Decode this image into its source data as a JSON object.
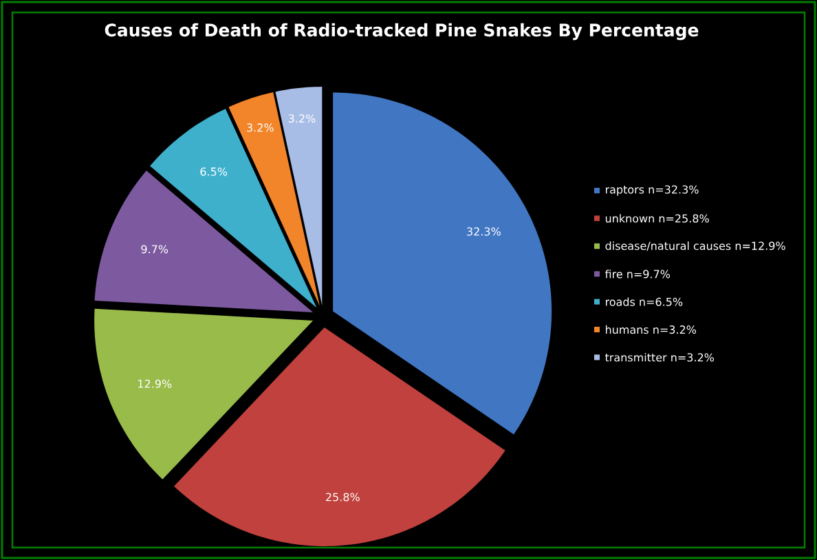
{
  "chart_data": {
    "type": "pie",
    "title": "Causes of Death of Radio-tracked  Pine Snakes By Percentage",
    "categories": [
      "raptors n=32.3%",
      "unknown n=25.8%",
      "disease/natural causes n=12.9%",
      "fire n=9.7%",
      "roads n=6.5%",
      "humans n=3.2%",
      "transmitter n=3.2%"
    ],
    "values": [
      32.3,
      25.8,
      12.9,
      9.7,
      6.5,
      3.2,
      3.2
    ],
    "value_labels": [
      "32.3%",
      "25.8%",
      "12.9%",
      "9.7%",
      "6.5%",
      "3.2%",
      "3.2%"
    ],
    "colors": [
      "#4076c2",
      "#c0413d",
      "#98bb4a",
      "#7d5aa0",
      "#3fb0cc",
      "#f2842a",
      "#a8bde6"
    ],
    "legend": "right"
  }
}
